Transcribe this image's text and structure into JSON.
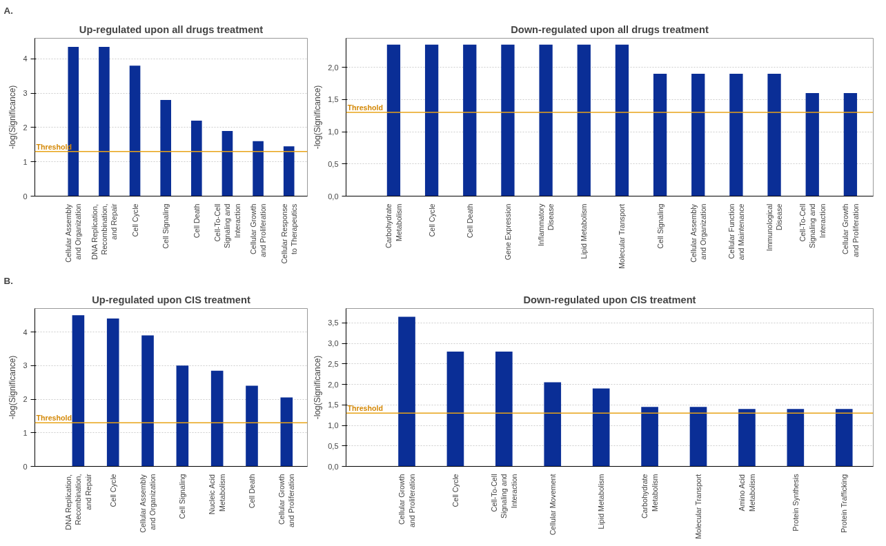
{
  "chart_data": [
    {
      "type": "bar",
      "title": "Up-regulated upon all drugs treatment",
      "ylabel": "-log(Significance)",
      "annotations": [
        "A."
      ],
      "categories": [
        "Cellular Assembly\nand Organization",
        "DNA Replication,\nRecombination,\nand Repair",
        "Cell Cycle",
        "Cell Signaling",
        "Cell Death",
        "Cell-To-Cell\nSignaling and\nInteraction",
        "Cellular Growth\nand Proliferation",
        "Cellular Response\nto Therapeutics"
      ],
      "values": [
        4.35,
        4.35,
        3.8,
        2.8,
        2.2,
        1.9,
        1.6,
        1.45
      ],
      "color": "#0a2e96",
      "ylim": [
        0,
        4.6
      ],
      "yticks": [
        0,
        1,
        2,
        3,
        4
      ],
      "grid": "y",
      "ref_lines": [
        {
          "axis": "y",
          "value": 1.3,
          "label": "Threshold",
          "color": "#e8a317"
        }
      ]
    },
    {
      "type": "bar",
      "title": "Down-regulated upon all drugs treatment",
      "ylabel": "-log(Significance)",
      "categories": [
        "Carbohydrate\nMetabolism",
        "Cell Cycle",
        "Cell Death",
        "Gene Expression",
        "Inflammatory\nDisease",
        "Lipid Metabolism",
        "Molecular Transport",
        "Cell Signaling",
        "Cellular Assembly\nand Organization",
        "Cellular Function\nand Maintenance",
        "Immunological\nDisease",
        "Cell-To-Cell\nSignaling and\nInteraction",
        "Cellular Growth\nand Proliferation"
      ],
      "values": [
        2.35,
        2.35,
        2.35,
        2.35,
        2.35,
        2.35,
        2.35,
        1.9,
        1.9,
        1.9,
        1.9,
        1.6,
        1.6
      ],
      "color": "#0a2e96",
      "ylim": [
        0,
        2.45
      ],
      "yticks": [
        {
          "value": 0,
          "label": "0,0"
        },
        {
          "value": 0.5,
          "label": "0,5"
        },
        {
          "value": 1,
          "label": "1,0"
        },
        {
          "value": 1.5,
          "label": "1,5"
        },
        {
          "value": 2,
          "label": "2,0"
        }
      ],
      "grid": "y",
      "ref_lines": [
        {
          "axis": "y",
          "value": 1.3,
          "label": "Threshold",
          "color": "#e8a317"
        }
      ]
    },
    {
      "type": "bar",
      "title": "Up-regulated upon CIS treatment",
      "ylabel": "-log(Significance)",
      "annotations": [
        "B."
      ],
      "categories": [
        "DNA Replication,\nRecombination,\nand Repair",
        "Cell Cycle",
        "Cellular Assembly\nand Organization",
        "Cell Signaling",
        "Nucleic Acid\nMetabolism",
        "Cell Death",
        "Cellular Growth\nand Proliferation"
      ],
      "values": [
        4.5,
        4.4,
        3.9,
        3.0,
        2.85,
        2.4,
        2.05
      ],
      "color": "#0a2e96",
      "ylim": [
        0,
        4.7
      ],
      "yticks": [
        0,
        1,
        2,
        3,
        4
      ],
      "grid": "y",
      "ref_lines": [
        {
          "axis": "y",
          "value": 1.3,
          "label": "Threshold",
          "color": "#e8a317"
        }
      ]
    },
    {
      "type": "bar",
      "title": "Down-regulated upon CIS treatment",
      "ylabel": "-log(Significance)",
      "categories": [
        "Cellular Growth\nand Proliferation",
        "Cell Cycle",
        "Cell-To-Cell\nSignaling and\nInteraction",
        "Cellular Movement",
        "Lipid Metabolism",
        "Carbohydrate\nMetabolism",
        "Molecular Transport",
        "Amino Acid\nMetabolism",
        "Protein Synthesis",
        "Protein Trafficking"
      ],
      "values": [
        3.65,
        2.8,
        2.8,
        2.05,
        1.9,
        1.45,
        1.45,
        1.4,
        1.4,
        1.4
      ],
      "color": "#0a2e96",
      "ylim": [
        0,
        3.85
      ],
      "yticks": [
        {
          "value": 0,
          "label": "0,0"
        },
        {
          "value": 0.5,
          "label": "0,5"
        },
        {
          "value": 1,
          "label": "1,0"
        },
        {
          "value": 1.5,
          "label": "1,5"
        },
        {
          "value": 2,
          "label": "2,0"
        },
        {
          "value": 2.5,
          "label": "2,5"
        },
        {
          "value": 3,
          "label": "3,0"
        },
        {
          "value": 3.5,
          "label": "3,5"
        }
      ],
      "grid": "y",
      "ref_lines": [
        {
          "axis": "y",
          "value": 1.3,
          "label": "Threshold",
          "color": "#e8a317"
        }
      ]
    }
  ]
}
